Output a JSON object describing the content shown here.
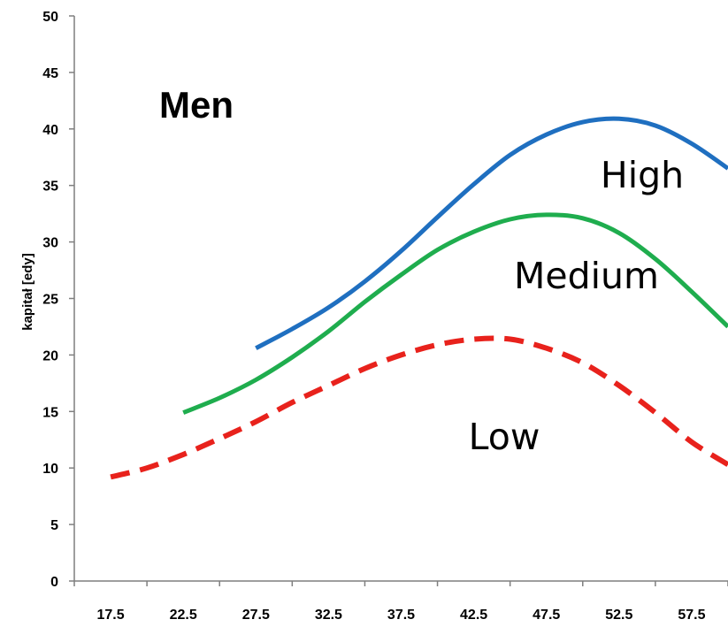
{
  "chart_data": {
    "type": "line",
    "title": "Men",
    "xlabel": "",
    "ylabel": "kapitał [edy]",
    "x_ticks": [
      "17.5",
      "22.5",
      "27.5",
      "32.5",
      "37.5",
      "42.5",
      "47.5",
      "52.5",
      "57.5"
    ],
    "y_ticks": [
      "0",
      "5",
      "10",
      "15",
      "20",
      "25",
      "30",
      "35",
      "40",
      "45",
      "50"
    ],
    "xlim": [
      15,
      60
    ],
    "ylim": [
      0,
      50
    ],
    "grid": false,
    "legend": "none",
    "series": [
      {
        "name": "High",
        "color": "#1f6fc0",
        "dash": "solid",
        "points": [
          [
            27.5,
            20.6
          ],
          [
            30,
            22.3
          ],
          [
            32.5,
            24.2
          ],
          [
            35,
            26.5
          ],
          [
            37.5,
            29.2
          ],
          [
            40,
            32.2
          ],
          [
            42.5,
            35.1
          ],
          [
            45,
            37.7
          ],
          [
            47.5,
            39.5
          ],
          [
            50,
            40.6
          ],
          [
            52.5,
            40.9
          ],
          [
            55,
            40.3
          ],
          [
            57.5,
            38.7
          ],
          [
            60,
            36.5
          ]
        ]
      },
      {
        "name": "Medium",
        "color": "#1fad4e",
        "dash": "solid",
        "points": [
          [
            22.5,
            14.9
          ],
          [
            25,
            16.2
          ],
          [
            27.5,
            17.8
          ],
          [
            30,
            19.8
          ],
          [
            32.5,
            22.1
          ],
          [
            35,
            24.7
          ],
          [
            37.5,
            27.1
          ],
          [
            40,
            29.3
          ],
          [
            42.5,
            30.9
          ],
          [
            45,
            32.0
          ],
          [
            47.5,
            32.4
          ],
          [
            50,
            32.1
          ],
          [
            52.5,
            30.8
          ],
          [
            55,
            28.5
          ],
          [
            57.5,
            25.6
          ],
          [
            60,
            22.5
          ]
        ]
      },
      {
        "name": "Low",
        "color": "#e8221c",
        "dash": "dashed",
        "points": [
          [
            17.5,
            9.2
          ],
          [
            20,
            10.0
          ],
          [
            22.5,
            11.2
          ],
          [
            25,
            12.6
          ],
          [
            27.5,
            14.1
          ],
          [
            30,
            15.8
          ],
          [
            32.5,
            17.3
          ],
          [
            35,
            18.8
          ],
          [
            37.5,
            20.0
          ],
          [
            40,
            20.9
          ],
          [
            42.5,
            21.4
          ],
          [
            45,
            21.4
          ],
          [
            47.5,
            20.6
          ],
          [
            50,
            19.3
          ],
          [
            52.5,
            17.3
          ],
          [
            55,
            14.9
          ],
          [
            57.5,
            12.3
          ],
          [
            60,
            10.3
          ]
        ]
      }
    ]
  }
}
